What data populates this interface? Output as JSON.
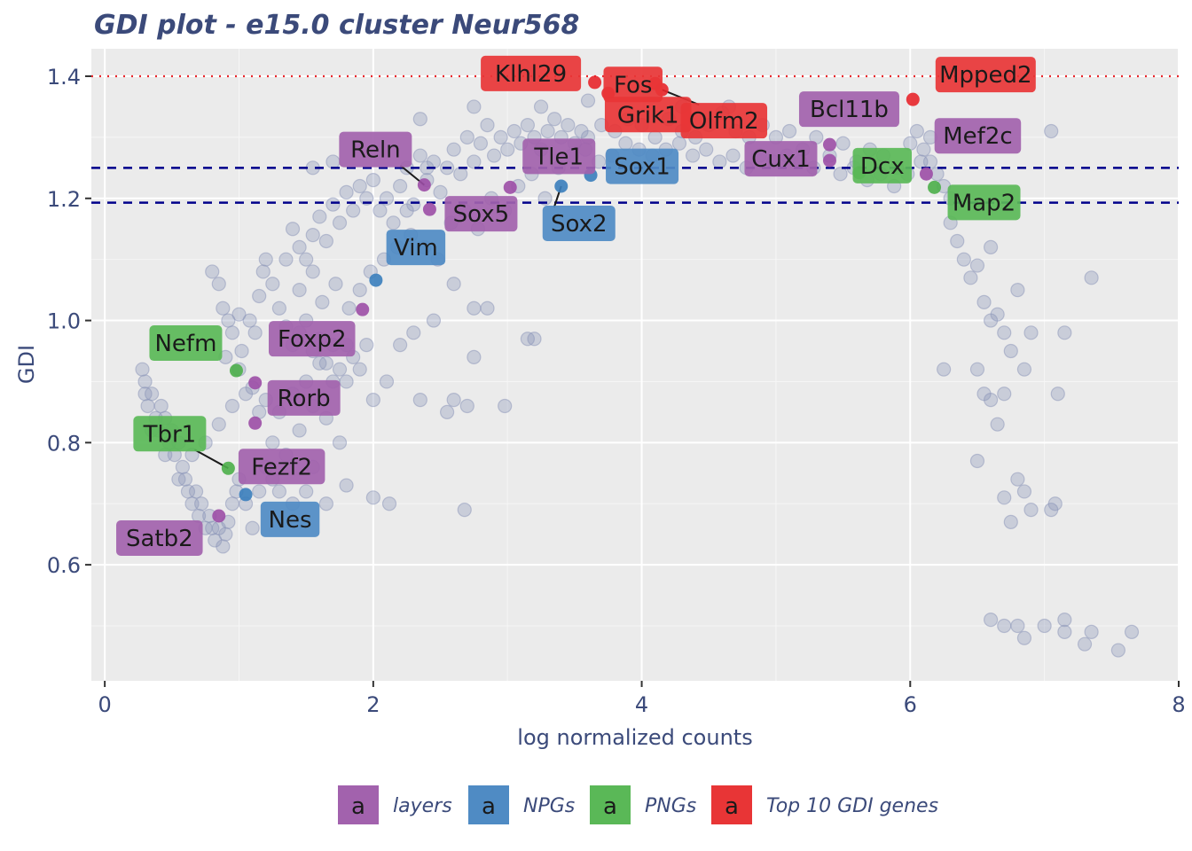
{
  "chart_data": {
    "type": "scatter",
    "title": "GDI plot - e15.0 cluster Neur568",
    "xlabel": "log normalized counts",
    "ylabel": "GDI",
    "xlim": [
      -0.1,
      8.0
    ],
    "ylim": [
      0.41,
      1.445
    ],
    "x_ticks": [
      0,
      2,
      4,
      6,
      8
    ],
    "y_ticks": [
      0.6,
      0.8,
      1.0,
      1.2,
      1.4
    ],
    "grid": true,
    "reference_lines": [
      {
        "y": 1.4,
        "color": "#e8262b",
        "style": "dotted"
      },
      {
        "y": 1.25,
        "color": "#00008b",
        "style": "dashed"
      },
      {
        "y": 1.193,
        "color": "#00008b",
        "style": "dashed"
      }
    ],
    "background_points_color": "#8a94b8",
    "background_points": [
      [
        0.28,
        0.92
      ],
      [
        0.3,
        0.9
      ],
      [
        0.3,
        0.88
      ],
      [
        0.32,
        0.86
      ],
      [
        0.35,
        0.88
      ],
      [
        0.38,
        0.84
      ],
      [
        0.4,
        0.82
      ],
      [
        0.42,
        0.86
      ],
      [
        0.45,
        0.84
      ],
      [
        0.48,
        0.8
      ],
      [
        0.5,
        0.82
      ],
      [
        0.52,
        0.78
      ],
      [
        0.55,
        0.8
      ],
      [
        0.58,
        0.76
      ],
      [
        0.6,
        0.74
      ],
      [
        0.62,
        0.72
      ],
      [
        0.65,
        0.7
      ],
      [
        0.68,
        0.72
      ],
      [
        0.7,
        0.68
      ],
      [
        0.72,
        0.7
      ],
      [
        0.75,
        0.66
      ],
      [
        0.78,
        0.68
      ],
      [
        0.8,
        0.66
      ],
      [
        0.82,
        0.64
      ],
      [
        0.85,
        0.66
      ],
      [
        0.88,
        0.63
      ],
      [
        0.9,
        0.65
      ],
      [
        0.92,
        0.67
      ],
      [
        0.95,
        0.7
      ],
      [
        0.98,
        0.72
      ],
      [
        1.0,
        0.74
      ],
      [
        1.05,
        0.7
      ],
      [
        1.1,
        0.66
      ],
      [
        1.15,
        0.72
      ],
      [
        1.2,
        0.76
      ],
      [
        1.25,
        0.74
      ],
      [
        1.3,
        0.72
      ],
      [
        1.4,
        0.7
      ],
      [
        1.5,
        0.72
      ],
      [
        1.55,
        0.76
      ],
      [
        1.65,
        0.7
      ],
      [
        1.8,
        0.73
      ],
      [
        2.0,
        0.71
      ],
      [
        2.12,
        0.7
      ],
      [
        2.68,
        0.69
      ],
      [
        0.35,
        0.82
      ],
      [
        0.45,
        0.78
      ],
      [
        0.55,
        0.74
      ],
      [
        0.65,
        0.78
      ],
      [
        0.75,
        0.8
      ],
      [
        0.85,
        0.83
      ],
      [
        0.95,
        0.86
      ],
      [
        1.05,
        0.88
      ],
      [
        1.15,
        0.85
      ],
      [
        1.25,
        0.8
      ],
      [
        1.35,
        0.78
      ],
      [
        1.45,
        0.82
      ],
      [
        1.55,
        0.86
      ],
      [
        1.65,
        0.84
      ],
      [
        1.75,
        0.8
      ],
      [
        0.8,
        1.08
      ],
      [
        0.85,
        1.06
      ],
      [
        0.88,
        1.02
      ],
      [
        0.92,
        1.0
      ],
      [
        0.95,
        0.98
      ],
      [
        1.0,
        1.01
      ],
      [
        1.02,
        0.95
      ],
      [
        1.08,
        1.0
      ],
      [
        1.12,
        0.98
      ],
      [
        1.15,
        1.04
      ],
      [
        1.18,
        1.08
      ],
      [
        1.2,
        1.1
      ],
      [
        1.25,
        1.06
      ],
      [
        1.3,
        1.02
      ],
      [
        1.35,
        0.99
      ],
      [
        1.4,
        0.96
      ],
      [
        1.45,
        0.98
      ],
      [
        1.5,
        1.0
      ],
      [
        1.55,
        0.95
      ],
      [
        1.6,
        0.97
      ],
      [
        1.65,
        0.93
      ],
      [
        1.7,
        0.96
      ],
      [
        1.75,
        0.92
      ],
      [
        1.8,
        0.9
      ],
      [
        1.85,
        0.94
      ],
      [
        1.9,
        0.92
      ],
      [
        1.95,
        0.96
      ],
      [
        2.0,
        0.87
      ],
      [
        2.1,
        0.9
      ],
      [
        2.2,
        0.96
      ],
      [
        2.3,
        0.98
      ],
      [
        2.35,
        0.87
      ],
      [
        2.45,
        1.0
      ],
      [
        2.55,
        0.85
      ],
      [
        2.6,
        0.87
      ],
      [
        2.7,
        0.86
      ],
      [
        2.75,
        0.94
      ],
      [
        2.98,
        0.86
      ],
      [
        3.15,
        0.97
      ],
      [
        3.2,
        0.97
      ],
      [
        1.4,
        1.15
      ],
      [
        1.45,
        1.12
      ],
      [
        1.5,
        1.1
      ],
      [
        1.55,
        1.14
      ],
      [
        1.6,
        1.17
      ],
      [
        1.65,
        1.13
      ],
      [
        1.7,
        1.19
      ],
      [
        1.75,
        1.16
      ],
      [
        1.8,
        1.21
      ],
      [
        1.85,
        1.18
      ],
      [
        1.9,
        1.22
      ],
      [
        1.95,
        1.2
      ],
      [
        2.0,
        1.23
      ],
      [
        2.05,
        1.18
      ],
      [
        2.1,
        1.2
      ],
      [
        2.15,
        1.16
      ],
      [
        2.2,
        1.22
      ],
      [
        2.25,
        1.25
      ],
      [
        2.3,
        1.19
      ],
      [
        2.35,
        1.27
      ],
      [
        2.4,
        1.23
      ],
      [
        2.45,
        1.26
      ],
      [
        2.5,
        1.21
      ],
      [
        2.55,
        1.25
      ],
      [
        2.6,
        1.28
      ],
      [
        2.65,
        1.24
      ],
      [
        2.7,
        1.3
      ],
      [
        2.75,
        1.26
      ],
      [
        2.8,
        1.29
      ],
      [
        2.85,
        1.32
      ],
      [
        2.9,
        1.27
      ],
      [
        2.95,
        1.3
      ],
      [
        3.0,
        1.28
      ],
      [
        3.05,
        1.31
      ],
      [
        3.1,
        1.29
      ],
      [
        3.15,
        1.32
      ],
      [
        3.2,
        1.3
      ],
      [
        3.25,
        1.28
      ],
      [
        3.3,
        1.31
      ],
      [
        3.35,
        1.33
      ],
      [
        3.4,
        1.3
      ],
      [
        3.45,
        1.32
      ],
      [
        3.5,
        1.29
      ],
      [
        3.55,
        1.31
      ],
      [
        3.6,
        1.3
      ],
      [
        3.7,
        1.32
      ],
      [
        3.8,
        1.31
      ],
      [
        3.9,
        1.33
      ],
      [
        4.0,
        1.32
      ],
      [
        4.1,
        1.3
      ],
      [
        4.2,
        1.33
      ],
      [
        4.3,
        1.31
      ],
      [
        4.4,
        1.3
      ],
      [
        4.5,
        1.32
      ],
      [
        4.6,
        1.34
      ],
      [
        4.7,
        1.31
      ],
      [
        4.8,
        1.3
      ],
      [
        4.9,
        1.32
      ],
      [
        5.0,
        1.3
      ],
      [
        5.1,
        1.31
      ],
      [
        5.2,
        1.28
      ],
      [
        5.3,
        1.3
      ],
      [
        5.4,
        1.27
      ],
      [
        5.5,
        1.29
      ],
      [
        5.6,
        1.26
      ],
      [
        5.7,
        1.28
      ],
      [
        5.8,
        1.27
      ],
      [
        5.9,
        1.25
      ],
      [
        6.0,
        1.29
      ],
      [
        6.05,
        1.31
      ],
      [
        6.1,
        1.28
      ],
      [
        6.15,
        1.26
      ],
      [
        6.2,
        1.24
      ],
      [
        6.25,
        1.22
      ],
      [
        6.3,
        1.2
      ],
      [
        6.3,
        1.16
      ],
      [
        6.35,
        1.13
      ],
      [
        6.4,
        1.1
      ],
      [
        6.45,
        1.07
      ],
      [
        6.5,
        1.09
      ],
      [
        6.55,
        1.03
      ],
      [
        6.6,
        1.0
      ],
      [
        6.65,
        1.01
      ],
      [
        6.7,
        0.98
      ],
      [
        6.75,
        0.95
      ],
      [
        6.8,
        1.05
      ],
      [
        6.85,
        0.92
      ],
      [
        6.9,
        0.98
      ],
      [
        6.5,
        0.92
      ],
      [
        6.55,
        0.88
      ],
      [
        6.6,
        0.87
      ],
      [
        6.65,
        0.83
      ],
      [
        6.7,
        0.88
      ],
      [
        6.5,
        0.77
      ],
      [
        6.7,
        0.71
      ],
      [
        6.75,
        0.67
      ],
      [
        6.8,
        0.74
      ],
      [
        6.85,
        0.72
      ],
      [
        6.9,
        0.69
      ],
      [
        7.05,
        0.69
      ],
      [
        7.08,
        0.7
      ],
      [
        7.1,
        0.88
      ],
      [
        7.15,
        0.98
      ],
      [
        7.35,
        1.07
      ],
      [
        7.05,
        1.31
      ],
      [
        6.6,
        0.51
      ],
      [
        6.7,
        0.5
      ],
      [
        6.8,
        0.5
      ],
      [
        6.85,
        0.48
      ],
      [
        7.0,
        0.5
      ],
      [
        7.15,
        0.51
      ],
      [
        7.15,
        0.49
      ],
      [
        7.3,
        0.47
      ],
      [
        7.35,
        0.49
      ],
      [
        7.55,
        0.46
      ],
      [
        7.65,
        0.49
      ],
      [
        6.25,
        0.92
      ],
      [
        6.6,
        1.12
      ],
      [
        6.15,
        1.3
      ],
      [
        3.6,
        1.36
      ],
      [
        2.35,
        1.33
      ],
      [
        2.75,
        1.35
      ],
      [
        3.25,
        1.35
      ],
      [
        4.3,
        1.35
      ],
      [
        4.65,
        1.35
      ],
      [
        1.55,
        1.25
      ],
      [
        1.7,
        1.26
      ],
      [
        1.35,
        1.1
      ],
      [
        2.25,
        1.18
      ],
      [
        2.4,
        1.25
      ],
      [
        1.45,
        1.05
      ],
      [
        1.55,
        1.08
      ],
      [
        1.62,
        1.03
      ],
      [
        1.72,
        1.06
      ],
      [
        1.82,
        1.02
      ],
      [
        1.9,
        1.05
      ],
      [
        1.98,
        1.08
      ],
      [
        2.08,
        1.1
      ],
      [
        2.18,
        1.12
      ],
      [
        2.28,
        1.14
      ],
      [
        2.38,
        1.12
      ],
      [
        2.48,
        1.1
      ],
      [
        2.58,
        1.16
      ],
      [
        2.68,
        1.18
      ],
      [
        2.78,
        1.15
      ],
      [
        2.88,
        1.2
      ],
      [
        2.98,
        1.18
      ],
      [
        3.08,
        1.22
      ],
      [
        3.18,
        1.24
      ],
      [
        3.28,
        1.2
      ],
      [
        3.38,
        1.25
      ],
      [
        3.48,
        1.27
      ],
      [
        3.58,
        1.28
      ],
      [
        3.68,
        1.26
      ],
      [
        3.78,
        1.27
      ],
      [
        3.88,
        1.29
      ],
      [
        3.98,
        1.28
      ],
      [
        4.08,
        1.27
      ],
      [
        4.18,
        1.28
      ],
      [
        4.28,
        1.29
      ],
      [
        4.38,
        1.27
      ],
      [
        4.48,
        1.28
      ],
      [
        4.58,
        1.26
      ],
      [
        4.68,
        1.27
      ],
      [
        4.78,
        1.25
      ],
      [
        4.88,
        1.27
      ],
      [
        4.98,
        1.26
      ],
      [
        5.08,
        1.27
      ],
      [
        5.18,
        1.26
      ],
      [
        5.28,
        1.25
      ],
      [
        5.48,
        1.24
      ],
      [
        5.58,
        1.25
      ],
      [
        5.68,
        1.23
      ],
      [
        5.78,
        1.24
      ],
      [
        5.88,
        1.22
      ],
      [
        5.98,
        1.24
      ],
      [
        6.08,
        1.26
      ],
      [
        2.6,
        1.06
      ],
      [
        2.75,
        1.02
      ],
      [
        2.85,
        1.02
      ],
      [
        0.9,
        0.94
      ],
      [
        1.0,
        0.92
      ],
      [
        1.1,
        0.89
      ],
      [
        1.2,
        0.87
      ],
      [
        1.3,
        0.85
      ],
      [
        1.4,
        0.88
      ],
      [
        1.5,
        0.9
      ],
      [
        1.6,
        0.93
      ],
      [
        1.7,
        0.9
      ],
      [
        1.8,
        0.96
      ]
    ],
    "series": [
      {
        "name": "layers",
        "color": "#9c4ea6",
        "label_bg": "#a262ad",
        "points": [
          {
            "label": "Reln",
            "x": 2.38,
            "y": 1.222
          },
          {
            "label": "Tle1",
            "x": 3.02,
            "y": 1.218
          },
          {
            "label": "Sox5",
            "x": 2.42,
            "y": 1.182
          },
          {
            "label": "Foxp2",
            "x": 1.92,
            "y": 1.018
          },
          {
            "label": "Rorb",
            "x": 1.12,
            "y": 0.898
          },
          {
            "label": "Fezf2",
            "x": 1.12,
            "y": 0.832
          },
          {
            "label": "Satb2",
            "x": 0.85,
            "y": 0.68
          },
          {
            "label": "Bcl11b",
            "x": 5.4,
            "y": 1.288
          },
          {
            "label": "Cux1",
            "x": 5.4,
            "y": 1.262
          },
          {
            "label": "Mef2c",
            "x": 6.12,
            "y": 1.24
          }
        ]
      },
      {
        "name": "NPGs",
        "color": "#3a7ebc",
        "label_bg": "#4f8bc4",
        "points": [
          {
            "label": "Sox1",
            "x": 3.62,
            "y": 1.238
          },
          {
            "label": "Sox2",
            "x": 3.4,
            "y": 1.22
          },
          {
            "label": "Vim",
            "x": 2.02,
            "y": 1.066
          },
          {
            "label": "Nes",
            "x": 1.05,
            "y": 0.715
          }
        ]
      },
      {
        "name": "PNGs",
        "color": "#4daf4a",
        "label_bg": "#5ab857",
        "points": [
          {
            "label": "Nefm",
            "x": 0.98,
            "y": 0.918
          },
          {
            "label": "Tbr1",
            "x": 0.92,
            "y": 0.758
          },
          {
            "label": "Dcx",
            "x": 5.62,
            "y": 1.242
          },
          {
            "label": "Map2",
            "x": 6.18,
            "y": 1.218
          }
        ]
      },
      {
        "name": "Top 10 GDI genes",
        "color": "#e8262b",
        "label_bg": "#e83536",
        "points": [
          {
            "label": "Klhl29",
            "x": 3.65,
            "y": 1.39
          },
          {
            "label": "Fos",
            "x": 3.75,
            "y": 1.372
          },
          {
            "label": "Grik1",
            "x": 4.1,
            "y": 1.388
          },
          {
            "label": "Olfm2",
            "x": 4.15,
            "y": 1.378
          },
          {
            "label": "Mpped2",
            "x": 6.02,
            "y": 1.362
          }
        ]
      }
    ]
  },
  "legend": {
    "key_glyph": "a",
    "items": [
      {
        "label": "layers",
        "color": "#a262ad"
      },
      {
        "label": "NPGs",
        "color": "#4f8bc4"
      },
      {
        "label": "PNGs",
        "color": "#5ab857"
      },
      {
        "label": "Top 10 GDI genes",
        "color": "#e83536"
      }
    ]
  }
}
